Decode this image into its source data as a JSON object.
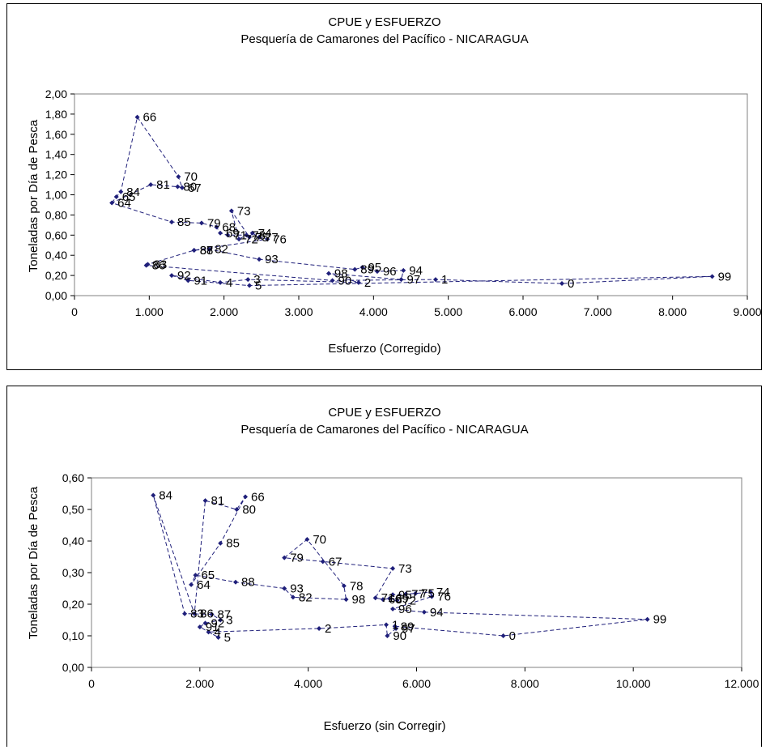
{
  "chart_data": [
    {
      "type": "scatter",
      "title": "CPUE y ESFUERZO",
      "subtitle": "Pesquería de Camarones del Pacífico - NICARAGUA",
      "xlabel": "Esfuerzo (Corregido)",
      "ylabel": "Toneladas por Día de Pesca",
      "xlim": [
        0,
        9000
      ],
      "ylim": [
        0,
        2.0
      ],
      "xticks": [
        0,
        1000,
        2000,
        3000,
        4000,
        5000,
        6000,
        7000,
        8000,
        9000
      ],
      "xtick_labels": [
        "0",
        "1.000",
        "2.000",
        "3.000",
        "4.000",
        "5.000",
        "6.000",
        "7.000",
        "8.000",
        "9.000"
      ],
      "yticks": [
        0,
        0.2,
        0.4,
        0.6,
        0.8,
        1.0,
        1.2,
        1.4,
        1.6,
        1.8,
        2.0
      ],
      "ytick_labels": [
        "0,00",
        "0,20",
        "0,40",
        "0,60",
        "0,80",
        "1,00",
        "1,20",
        "1,40",
        "1,60",
        "1,80",
        "2,00"
      ],
      "grid": false,
      "legend": "none",
      "line_style": "dashed",
      "color": "#1f1f7a",
      "points": [
        {
          "label": "64",
          "x": 500,
          "y": 0.92
        },
        {
          "label": "65",
          "x": 560,
          "y": 0.98
        },
        {
          "label": "84",
          "x": 620,
          "y": 1.03
        },
        {
          "label": "66",
          "x": 840,
          "y": 1.77
        },
        {
          "label": "67",
          "x": 1440,
          "y": 1.07
        },
        {
          "label": "68",
          "x": 1900,
          "y": 0.68
        },
        {
          "label": "69",
          "x": 1950,
          "y": 0.62
        },
        {
          "label": "70",
          "x": 1390,
          "y": 1.18
        },
        {
          "label": "71",
          "x": 2050,
          "y": 0.6
        },
        {
          "label": "72",
          "x": 2200,
          "y": 0.56
        },
        {
          "label": "73",
          "x": 2100,
          "y": 0.84
        },
        {
          "label": "74",
          "x": 2380,
          "y": 0.62
        },
        {
          "label": "75",
          "x": 2340,
          "y": 0.58
        },
        {
          "label": "76",
          "x": 2580,
          "y": 0.56
        },
        {
          "label": "77",
          "x": 2470,
          "y": 0.58
        },
        {
          "label": "78",
          "x": 2300,
          "y": 0.6
        },
        {
          "label": "79",
          "x": 1700,
          "y": 0.72
        },
        {
          "label": "80",
          "x": 1380,
          "y": 1.08
        },
        {
          "label": "81",
          "x": 1020,
          "y": 1.1
        },
        {
          "label": "82",
          "x": 1800,
          "y": 0.46
        },
        {
          "label": "83",
          "x": 980,
          "y": 0.31
        },
        {
          "label": "85",
          "x": 1300,
          "y": 0.73
        },
        {
          "label": "86",
          "x": 960,
          "y": 0.3
        },
        {
          "label": "87",
          "x": 1600,
          "y": 0.45
        },
        {
          "label": "88",
          "x": 1600,
          "y": 0.45
        },
        {
          "label": "89",
          "x": 3750,
          "y": 0.26
        },
        {
          "label": "90",
          "x": 3450,
          "y": 0.15
        },
        {
          "label": "91",
          "x": 1520,
          "y": 0.15
        },
        {
          "label": "92",
          "x": 1300,
          "y": 0.2
        },
        {
          "label": "93",
          "x": 2470,
          "y": 0.36
        },
        {
          "label": "94",
          "x": 4400,
          "y": 0.25
        },
        {
          "label": "95",
          "x": 3850,
          "y": 0.28
        },
        {
          "label": "96",
          "x": 4050,
          "y": 0.24
        },
        {
          "label": "97",
          "x": 4370,
          "y": 0.16
        },
        {
          "label": "98",
          "x": 3400,
          "y": 0.22
        },
        {
          "label": "99",
          "x": 8530,
          "y": 0.19
        },
        {
          "label": "0",
          "x": 6520,
          "y": 0.12
        },
        {
          "label": "1",
          "x": 4830,
          "y": 0.16
        },
        {
          "label": "2",
          "x": 3800,
          "y": 0.13
        },
        {
          "label": "3",
          "x": 2320,
          "y": 0.16
        },
        {
          "label": "4",
          "x": 1950,
          "y": 0.13
        },
        {
          "label": "5",
          "x": 2340,
          "y": 0.1
        }
      ],
      "path_order": [
        "64",
        "65",
        "84",
        "66",
        "70",
        "67",
        "80",
        "81",
        "64",
        "85",
        "79",
        "68",
        "69",
        "71",
        "78",
        "72",
        "73",
        "75",
        "74",
        "77",
        "76",
        "88",
        "82",
        "93",
        "89",
        "95",
        "96",
        "94",
        "97",
        "98",
        "2",
        "3",
        "4",
        "92",
        "91",
        "5",
        "99",
        "0",
        "1",
        "90",
        "86",
        "83",
        "87"
      ]
    },
    {
      "type": "scatter",
      "title": "CPUE y ESFUERZO",
      "subtitle": "Pesquería de Camarones del Pacífico - NICARAGUA",
      "xlabel": "Esfuerzo (sin Corregir)",
      "ylabel": "Toneladas por Día de Pesca",
      "xlim": [
        0,
        12000
      ],
      "ylim": [
        0,
        0.6
      ],
      "xticks": [
        0,
        2000,
        4000,
        6000,
        8000,
        10000,
        12000
      ],
      "xtick_labels": [
        "0",
        "2.000",
        "4.000",
        "6.000",
        "8.000",
        "10.000",
        "12.000"
      ],
      "yticks": [
        0,
        0.1,
        0.2,
        0.3,
        0.4,
        0.5,
        0.6
      ],
      "ytick_labels": [
        "0,00",
        "0,10",
        "0,20",
        "0,30",
        "0,40",
        "0,50",
        "0,60"
      ],
      "grid": false,
      "legend": "none",
      "line_style": "dashed",
      "color": "#1f1f7a",
      "points": [
        {
          "label": "84",
          "x": 1140,
          "y": 0.545
        },
        {
          "label": "81",
          "x": 2100,
          "y": 0.528
        },
        {
          "label": "66",
          "x": 2840,
          "y": 0.54
        },
        {
          "label": "80",
          "x": 2680,
          "y": 0.5
        },
        {
          "label": "85",
          "x": 2380,
          "y": 0.393
        },
        {
          "label": "70",
          "x": 3980,
          "y": 0.405
        },
        {
          "label": "67",
          "x": 4270,
          "y": 0.335
        },
        {
          "label": "79",
          "x": 3560,
          "y": 0.347
        },
        {
          "label": "65",
          "x": 1920,
          "y": 0.292
        },
        {
          "label": "64",
          "x": 1840,
          "y": 0.262
        },
        {
          "label": "88",
          "x": 2660,
          "y": 0.27
        },
        {
          "label": "73",
          "x": 5560,
          "y": 0.313
        },
        {
          "label": "78",
          "x": 4660,
          "y": 0.258
        },
        {
          "label": "93",
          "x": 3560,
          "y": 0.25
        },
        {
          "label": "82",
          "x": 3720,
          "y": 0.222
        },
        {
          "label": "98",
          "x": 4700,
          "y": 0.215
        },
        {
          "label": "71",
          "x": 5240,
          "y": 0.22
        },
        {
          "label": "74",
          "x": 6260,
          "y": 0.238
        },
        {
          "label": "75",
          "x": 5980,
          "y": 0.234
        },
        {
          "label": "77",
          "x": 5800,
          "y": 0.232
        },
        {
          "label": "76",
          "x": 6280,
          "y": 0.224
        },
        {
          "label": "72",
          "x": 5640,
          "y": 0.212
        },
        {
          "label": "69",
          "x": 5500,
          "y": 0.218
        },
        {
          "label": "68",
          "x": 5380,
          "y": 0.215
        },
        {
          "label": "95",
          "x": 5560,
          "y": 0.23
        },
        {
          "label": "96",
          "x": 5560,
          "y": 0.185
        },
        {
          "label": "94",
          "x": 6140,
          "y": 0.175
        },
        {
          "label": "86",
          "x": 1900,
          "y": 0.17
        },
        {
          "label": "87",
          "x": 2220,
          "y": 0.168
        },
        {
          "label": "83",
          "x": 1720,
          "y": 0.17
        },
        {
          "label": "3",
          "x": 2380,
          "y": 0.15
        },
        {
          "label": "92",
          "x": 2100,
          "y": 0.14
        },
        {
          "label": "91",
          "x": 2000,
          "y": 0.128
        },
        {
          "label": "4",
          "x": 2160,
          "y": 0.112
        },
        {
          "label": "5",
          "x": 2340,
          "y": 0.095
        },
        {
          "label": "2",
          "x": 4200,
          "y": 0.123
        },
        {
          "label": "1",
          "x": 5440,
          "y": 0.135
        },
        {
          "label": "89",
          "x": 5600,
          "y": 0.13
        },
        {
          "label": "97",
          "x": 5620,
          "y": 0.123
        },
        {
          "label": "90",
          "x": 5460,
          "y": 0.1
        },
        {
          "label": "0",
          "x": 7600,
          "y": 0.1
        },
        {
          "label": "99",
          "x": 10260,
          "y": 0.152
        }
      ],
      "path_order": [
        "84",
        "86",
        "81",
        "80",
        "66",
        "85",
        "64",
        "65",
        "88",
        "93",
        "82",
        "98",
        "78",
        "70",
        "79",
        "67",
        "73",
        "71",
        "68",
        "69",
        "72",
        "95",
        "75",
        "77",
        "74",
        "76",
        "96",
        "94",
        "99",
        "0",
        "89",
        "97",
        "90",
        "1",
        "2",
        "4",
        "5",
        "91",
        "92",
        "3",
        "87",
        "83",
        "84"
      ]
    }
  ]
}
